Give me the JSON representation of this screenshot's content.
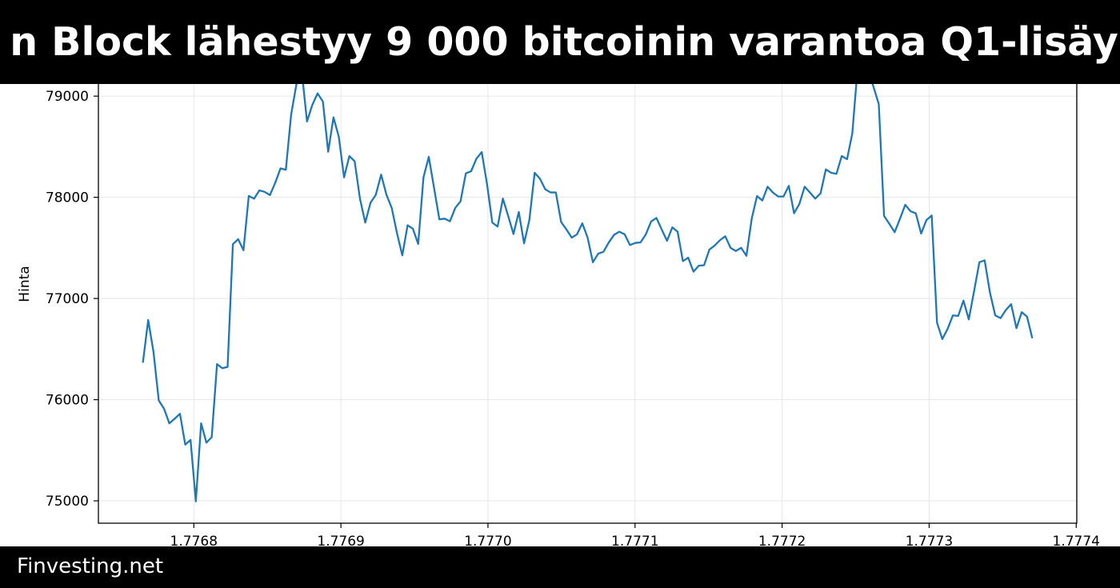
{
  "header": {
    "title": "n Block lähestyy 9 000 bitcoinin varantoa Q1-lisäy"
  },
  "footer": {
    "brand": "Finvesting.net"
  },
  "colors": {
    "line": "#1f77b4",
    "banner": "#000000",
    "grid": "#e6e6e6"
  },
  "chart_data": {
    "type": "line",
    "title": "n Block lähestyy 9 000 bitcoinin varantoa Q1-lisäy",
    "xlabel": "",
    "ylabel": "Hinta",
    "x_offset_scale": "1e9",
    "x_start": 1.77676535,
    "x_step": 3.6e-06,
    "xlim": [
      1.7767351,
      1.7774004
    ],
    "ylim": [
      74779,
      79531
    ],
    "grid": true,
    "xticks": [
      1.7768,
      1.7769,
      1.777,
      1.7771,
      1.7772,
      1.7773,
      1.7774
    ],
    "xtick_labels": [
      "1.7768",
      "1.7769",
      "1.7770",
      "1.7771",
      "1.7772",
      "1.7773",
      "1.7774"
    ],
    "yticks": [
      75000,
      76000,
      77000,
      78000,
      79000
    ],
    "ytick_labels": [
      "75000",
      "76000",
      "77000",
      "78000",
      "79000"
    ],
    "values": [
      76365,
      76787,
      76474,
      75992,
      75910,
      75766,
      75812,
      75861,
      75556,
      75602,
      74995,
      75766,
      75575,
      75629,
      76351,
      76311,
      76324,
      77537,
      77586,
      77477,
      78014,
      77986,
      78068,
      78054,
      78022,
      78144,
      78286,
      78272,
      78817,
      79117,
      79250,
      78749,
      78913,
      79027,
      78946,
      78450,
      78790,
      78600,
      78197,
      78408,
      78355,
      77987,
      77750,
      77947,
      78026,
      78224,
      78026,
      77895,
      77645,
      77426,
      77724,
      77689,
      77539,
      78197,
      78400,
      78092,
      77782,
      77789,
      77763,
      77895,
      77961,
      78237,
      78258,
      78382,
      78447,
      78132,
      77750,
      77711,
      77987,
      77816,
      77637,
      77855,
      77545,
      77776,
      78242,
      78184,
      78079,
      78048,
      78048,
      77756,
      77682,
      77602,
      77634,
      77743,
      77602,
      77358,
      77443,
      77462,
      77554,
      77629,
      77660,
      77634,
      77528,
      77549,
      77554,
      77634,
      77761,
      77796,
      77682,
      77570,
      77703,
      77660,
      77369,
      77403,
      77265,
      77324,
      77329,
      77483,
      77523,
      77576,
      77615,
      77501,
      77469,
      77501,
      77422,
      77789,
      78013,
      77968,
      78105,
      78047,
      78008,
      78008,
      78113,
      77842,
      77934,
      78105,
      78047,
      77987,
      78039,
      78276,
      78242,
      78232,
      78408,
      78376,
      78632,
      79280,
      79315,
      79250,
      79092,
      78921,
      77816,
      77737,
      77655,
      77788,
      77926,
      77862,
      77841,
      77642,
      77775,
      77820,
      76761,
      76599,
      76700,
      76833,
      76828,
      76979,
      76793,
      77072,
      77358,
      77377,
      77058,
      76833,
      76806,
      76886,
      76944,
      76706,
      76865,
      76820,
      76607
    ]
  }
}
